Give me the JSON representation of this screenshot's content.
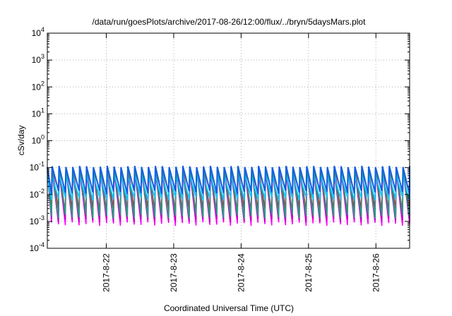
{
  "chart_data": {
    "type": "line",
    "title": "/data/run/goesPlots/archive/2017-08-26/12:00/flux/../bryn/5daysMars.plot",
    "xlabel": "Coordinated Universal Time (UTC)",
    "ylabel": "cSv/day",
    "yscale": "log",
    "ylim": [
      0.0001,
      10000
    ],
    "xlim": [
      "2017-08-21 03:00",
      "2017-08-26 12:00"
    ],
    "y_ticks": [
      {
        "base": "10",
        "exp": "-4",
        "value": 0.0001
      },
      {
        "base": "10",
        "exp": "-3",
        "value": 0.001
      },
      {
        "base": "10",
        "exp": "-2",
        "value": 0.01
      },
      {
        "base": "10",
        "exp": "-1",
        "value": 0.1
      },
      {
        "base": "10",
        "exp": "0",
        "value": 1
      },
      {
        "base": "10",
        "exp": "1",
        "value": 10
      },
      {
        "base": "10",
        "exp": "2",
        "value": 100
      },
      {
        "base": "10",
        "exp": "3",
        "value": 1000
      },
      {
        "base": "10",
        "exp": "4",
        "value": 10000
      }
    ],
    "x_ticks": [
      {
        "label": "2017-8-22",
        "date": "2017-08-22 00:00"
      },
      {
        "label": "2017-8-23",
        "date": "2017-08-23 00:00"
      },
      {
        "label": "2017-8-24",
        "date": "2017-08-24 00:00"
      },
      {
        "label": "2017-8-25",
        "date": "2017-08-25 00:00"
      },
      {
        "label": "2017-8-26",
        "date": "2017-08-26 00:00"
      }
    ],
    "grid": true,
    "sawtooth_period_hours": 2.45,
    "series": [
      {
        "color": "#d02030",
        "peak": 0.1,
        "trough": 0.0025
      },
      {
        "color": "#ff00ff",
        "peak": 0.1,
        "trough": 0.0008
      },
      {
        "color": "#c000c0",
        "peak": 0.07,
        "trough": 0.0011
      },
      {
        "color": "#20a080",
        "peak": 0.09,
        "trough": 0.0015
      },
      {
        "color": "#00c8ff",
        "peak": 0.05,
        "trough": 0.007
      },
      {
        "color": "#1060e0",
        "peak": 0.11,
        "trough": 0.012
      }
    ]
  }
}
